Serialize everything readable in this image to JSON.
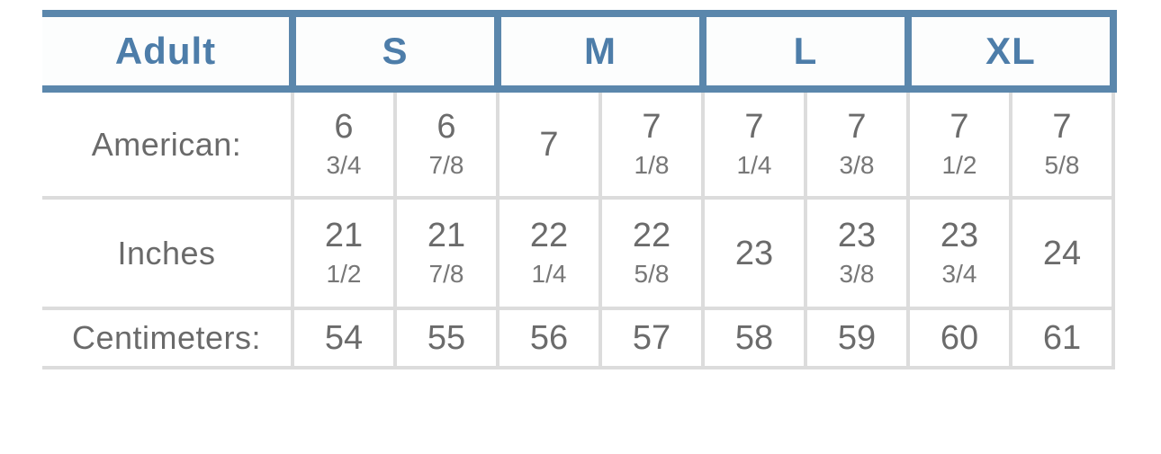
{
  "colors": {
    "accent_blue_text": "#4d7da9",
    "border_blue": "#5b87ac",
    "border_gray": "#dcdcdc",
    "text_gray": "#6b6b6b",
    "background": "#ffffff"
  },
  "table": {
    "header": {
      "corner": "Adult",
      "groups": [
        {
          "label": "S"
        },
        {
          "label": "M"
        },
        {
          "label": "L"
        },
        {
          "label": "XL"
        }
      ]
    },
    "rows": [
      {
        "label": "American:",
        "cells": [
          {
            "num": "6",
            "frac": "3/4"
          },
          {
            "num": "6",
            "frac": "7/8"
          },
          {
            "num": "7",
            "frac": ""
          },
          {
            "num": "7",
            "frac": "1/8"
          },
          {
            "num": "7",
            "frac": "1/4"
          },
          {
            "num": "7",
            "frac": "3/8"
          },
          {
            "num": "7",
            "frac": "1/2"
          },
          {
            "num": "7",
            "frac": "5/8"
          }
        ]
      },
      {
        "label": "Inches",
        "cells": [
          {
            "num": "21",
            "frac": "1/2"
          },
          {
            "num": "21",
            "frac": "7/8"
          },
          {
            "num": "22",
            "frac": "1/4"
          },
          {
            "num": "22",
            "frac": "5/8"
          },
          {
            "num": "23",
            "frac": ""
          },
          {
            "num": "23",
            "frac": "3/8"
          },
          {
            "num": "23",
            "frac": "3/4"
          },
          {
            "num": "24",
            "frac": ""
          }
        ]
      },
      {
        "label": "Centimeters:",
        "cells": [
          {
            "num": "54",
            "frac": ""
          },
          {
            "num": "55",
            "frac": ""
          },
          {
            "num": "56",
            "frac": ""
          },
          {
            "num": "57",
            "frac": ""
          },
          {
            "num": "58",
            "frac": ""
          },
          {
            "num": "59",
            "frac": ""
          },
          {
            "num": "60",
            "frac": ""
          },
          {
            "num": "61",
            "frac": ""
          }
        ]
      }
    ]
  },
  "chart_data": {
    "type": "table",
    "corner_label": "Adult",
    "size_groups": [
      "S",
      "M",
      "L",
      "XL"
    ],
    "columns_per_group": 2,
    "rows": [
      {
        "label": "American:",
        "values": [
          "6 3/4",
          "6 7/8",
          "7",
          "7 1/8",
          "7 1/4",
          "7 3/8",
          "7 1/2",
          "7 5/8"
        ]
      },
      {
        "label": "Inches",
        "values": [
          "21 1/2",
          "21 7/8",
          "22 1/4",
          "22 5/8",
          "23",
          "23 3/8",
          "23 3/4",
          "24"
        ]
      },
      {
        "label": "Centimeters:",
        "values": [
          "54",
          "55",
          "56",
          "57",
          "58",
          "59",
          "60",
          "61"
        ]
      }
    ],
    "layout_hints": {
      "header_text_color": "#4d7da9",
      "header_border_color": "#5b87ac",
      "body_border_color": "#dcdcdc",
      "left_edge_clipped": true
    }
  }
}
